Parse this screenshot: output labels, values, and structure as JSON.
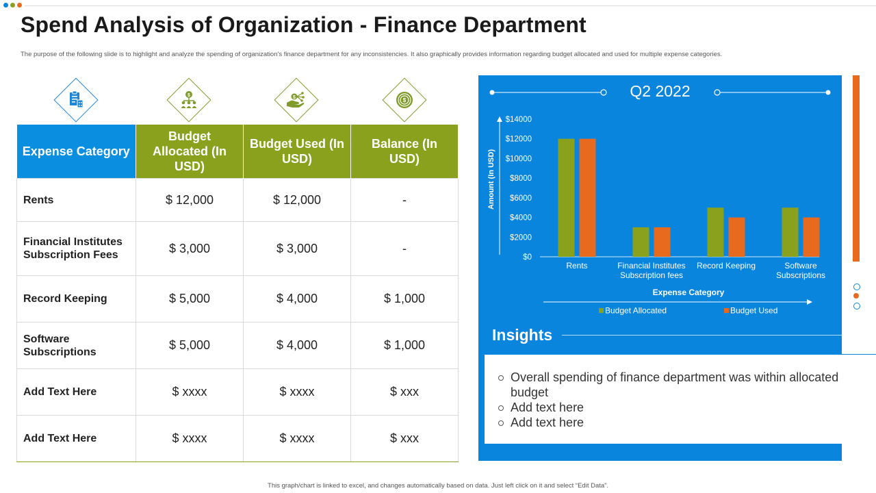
{
  "title": "Spend Analysis of Organization - Finance Department",
  "subtitle": "The purpose of the following slide is to highlight and analyze the spending of organization's finance department for any inconsistencies. It also graphically provides information regarding budget allocated and used for multiple expense categories.",
  "colors": {
    "blue": "#0a85de",
    "header_blue": "#0a8fe0",
    "green": "#8aa11e",
    "orange": "#e86a1e",
    "icon_blue": "#1e86d6",
    "icon_green": "#7f9b2a"
  },
  "icons": [
    "clipboard-building-icon",
    "money-team-icon",
    "hand-money-network-icon",
    "coin-target-icon"
  ],
  "table": {
    "headers": [
      "Expense Category",
      "Budget Allocated (In USD)",
      "Budget Used (In USD)",
      "Balance (In USD)"
    ],
    "rows": [
      {
        "category": "Rents",
        "allocated": "$ 12,000",
        "used": "$ 12,000",
        "balance": "-"
      },
      {
        "category": "Financial Institutes Subscription Fees",
        "allocated": "$ 3,000",
        "used": "$ 3,000",
        "balance": "-"
      },
      {
        "category": "Record Keeping",
        "allocated": "$ 5,000",
        "used": "$ 4,000",
        "balance": "$ 1,000"
      },
      {
        "category": "Software Subscriptions",
        "allocated": "$ 5,000",
        "used": "$ 4,000",
        "balance": "$ 1,000"
      },
      {
        "category": "Add Text Here",
        "allocated": "$ xxxx",
        "used": "$ xxxx",
        "balance": "$ xxx"
      },
      {
        "category": "Add Text Here",
        "allocated": "$ xxxx",
        "used": "$ xxxx",
        "balance": "$ xxx"
      }
    ]
  },
  "chart_data": {
    "type": "bar",
    "title": "Q2 2022",
    "categories": [
      "Rents",
      "Financial Institutes Subscription fees",
      "Record Keeping",
      "Software Subscriptions"
    ],
    "category_lines": [
      [
        "Rents"
      ],
      [
        "Financial Institutes",
        "Subscription fees"
      ],
      [
        "Record Keeping"
      ],
      [
        "Software",
        "Subscriptions"
      ]
    ],
    "series": [
      {
        "name": "Budget Allocated",
        "values": [
          12000,
          3000,
          5000,
          5000
        ],
        "color": "#8aa11e"
      },
      {
        "name": "Budget Used",
        "values": [
          12000,
          3000,
          4000,
          4000
        ],
        "color": "#e86a1e"
      }
    ],
    "xlabel": "Expense Category",
    "ylabel": "Amount (In USD)",
    "ylim": [
      0,
      14000
    ],
    "yticks": [
      0,
      2000,
      4000,
      6000,
      8000,
      10000,
      12000,
      14000
    ],
    "ytick_labels": [
      "$0",
      "$2000",
      "$4000",
      "$6000",
      "$8000",
      "$10000",
      "$12000",
      "$14000"
    ],
    "legend_position": "bottom",
    "grid": false
  },
  "insights": {
    "title": "Insights",
    "items": [
      "Overall spending of finance department was within allocated budget",
      "Add text here",
      "Add text here"
    ]
  },
  "footer": "This graph/chart is linked to excel, and changes automatically based on data. Just left click on it and select “Edit Data”."
}
